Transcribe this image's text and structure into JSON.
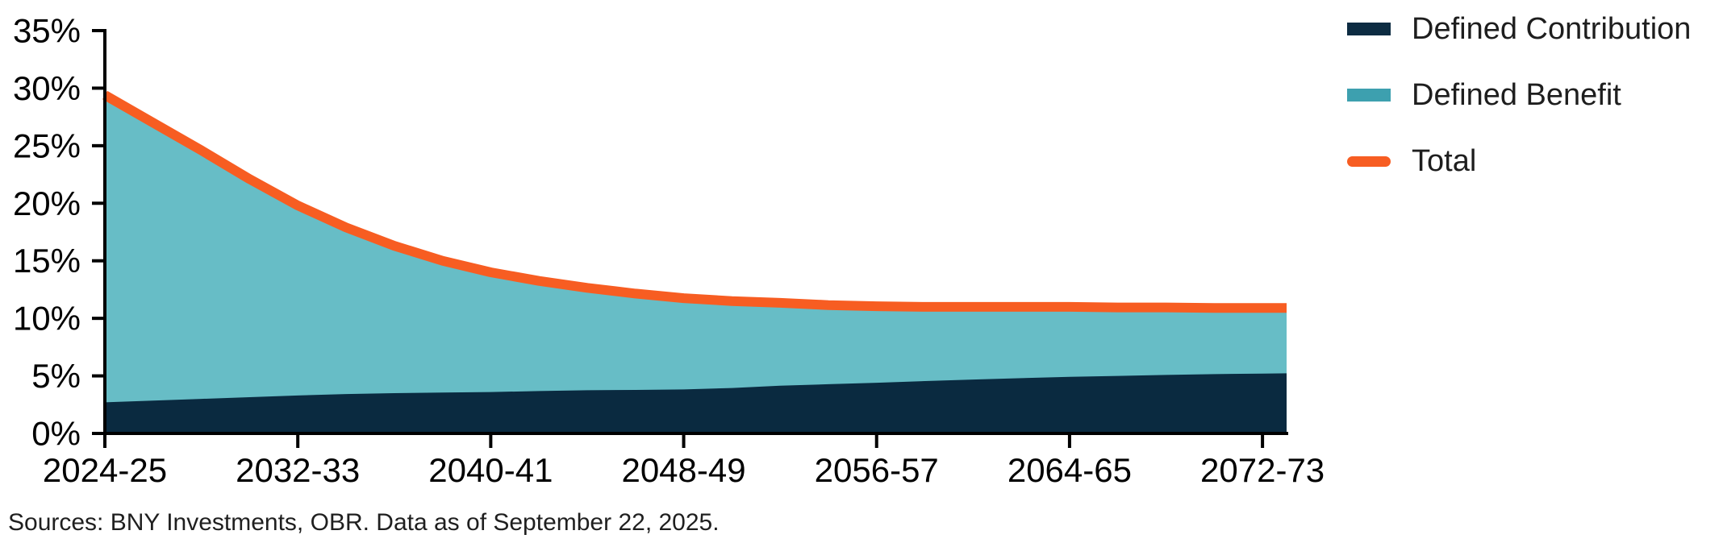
{
  "chart_data": {
    "type": "area",
    "stacked": true,
    "title": "",
    "xlabel": "",
    "ylabel": "",
    "ylim": [
      0,
      35
    ],
    "y_tick_values": [
      0,
      5,
      10,
      15,
      20,
      25,
      30,
      35
    ],
    "y_tick_labels": [
      "0%",
      "5%",
      "10%",
      "15%",
      "20%",
      "25%",
      "30%",
      "35%"
    ],
    "x_tick_years": [
      2024,
      2032,
      2040,
      2048,
      2056,
      2064,
      2072
    ],
    "x_tick_labels": [
      "2024-25",
      "2032-33",
      "2040-41",
      "2048-49",
      "2056-57",
      "2064-65",
      "2072-73"
    ],
    "x_range_years": [
      2024,
      2073
    ],
    "years": [
      2024,
      2026,
      2028,
      2030,
      2032,
      2034,
      2036,
      2038,
      2040,
      2042,
      2044,
      2046,
      2048,
      2050,
      2052,
      2054,
      2056,
      2058,
      2060,
      2062,
      2064,
      2066,
      2068,
      2070,
      2072,
      2073
    ],
    "series": [
      {
        "name": "Defined Contribution",
        "role": "area-bottom",
        "color": "#0a2a40",
        "values": [
          2.7,
          2.85,
          3.0,
          3.15,
          3.3,
          3.42,
          3.5,
          3.55,
          3.6,
          3.68,
          3.75,
          3.78,
          3.82,
          3.95,
          4.15,
          4.28,
          4.4,
          4.55,
          4.68,
          4.8,
          4.92,
          5.0,
          5.08,
          5.15,
          5.2,
          5.22
        ]
      },
      {
        "name": "Defined Benefit",
        "role": "area-top",
        "color": "#67bdc6",
        "values": [
          26.7,
          24.15,
          21.6,
          18.95,
          16.5,
          14.48,
          12.8,
          11.45,
          10.4,
          9.57,
          8.9,
          8.37,
          7.93,
          7.55,
          7.2,
          6.87,
          6.65,
          6.45,
          6.32,
          6.2,
          6.08,
          5.95,
          5.87,
          5.75,
          5.7,
          5.68
        ]
      },
      {
        "name": "Total",
        "role": "line",
        "color": "#f75d22",
        "values": [
          29.4,
          27.0,
          24.6,
          22.1,
          19.8,
          17.9,
          16.3,
          15.0,
          14.0,
          13.25,
          12.65,
          12.15,
          11.75,
          11.5,
          11.35,
          11.15,
          11.05,
          11.0,
          11.0,
          11.0,
          11.0,
          10.95,
          10.95,
          10.9,
          10.9,
          10.9
        ]
      }
    ],
    "legend_position": "top-right",
    "grid": false
  },
  "legend": {
    "items": [
      {
        "label": "Defined Contribution",
        "color": "#0d2c42",
        "shape": "rect"
      },
      {
        "label": "Defined Benefit",
        "color": "#3da0af",
        "shape": "rect"
      },
      {
        "label": "Total",
        "color": "#f75d22",
        "shape": "line"
      }
    ]
  },
  "source_note": "Sources: BNY Investments, OBR. Data as of September 22, 2025.",
  "colors": {
    "defined_contribution_area": "#0a2a40",
    "defined_benefit_area": "#67bdc6",
    "total_line": "#f75d22",
    "axis": "#000000",
    "text": "#1e1e1e",
    "background": "#ffffff"
  }
}
